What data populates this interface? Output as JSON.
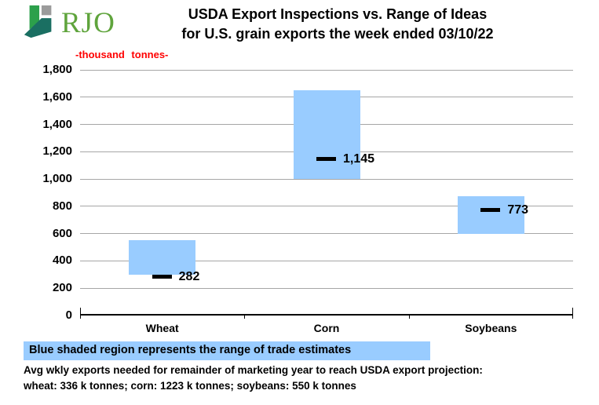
{
  "logo": {
    "text": "RJO"
  },
  "title": {
    "line1": "USDA Export Inspections vs. Range of Ideas",
    "line2": "for U.S. grain exports the week ended 03/10/22"
  },
  "chart_data": {
    "type": "bar",
    "subtype": "floating-range-bars-with-value-markers",
    "title": "USDA Export Inspections vs. Range of Ideas for U.S. grain exports the week ended 03/10/22",
    "ylabel": "-thousand tonnes-",
    "categories": [
      "Wheat",
      "Corn",
      "Soybeans"
    ],
    "series": [
      {
        "name": "Range of trade estimates",
        "kind": "range",
        "low": [
          300,
          1000,
          600
        ],
        "high": [
          550,
          1650,
          875
        ]
      },
      {
        "name": "USDA export inspections",
        "kind": "marker",
        "values": [
          282,
          1145,
          773
        ],
        "labels": [
          "282",
          "1,145",
          "773"
        ]
      }
    ],
    "ylim": [
      0,
      1800
    ],
    "ytick_step": 200,
    "ytick_labels": [
      "0",
      "200",
      "400",
      "600",
      "800",
      "1,000",
      "1,200",
      "1,400",
      "1,600",
      "1,800"
    ],
    "grid": true,
    "legend_position": "bottom-banner",
    "colors": {
      "range_fill": "#99ccff",
      "marker": "#000000",
      "gridline": "#a6a6a6",
      "axis": "#000000",
      "ylabel_color": "#ff0000"
    }
  },
  "legend_banner": {
    "text": "Blue shaded region represents the range of trade estimates",
    "background": "#99ccff"
  },
  "footer": {
    "line1": "Avg wkly exports needed for remainder of marketing year to reach USDA export projection:",
    "line2": "wheat: 336 k tonnes; corn: 1223 k tonnes; soybeans: 550 k tonnes"
  },
  "logo_colors": {
    "bright_green": "#2ca04b",
    "dark_teal": "#1a6f62",
    "gray": "#9b9b9b",
    "text_green": "#5fa43c"
  }
}
